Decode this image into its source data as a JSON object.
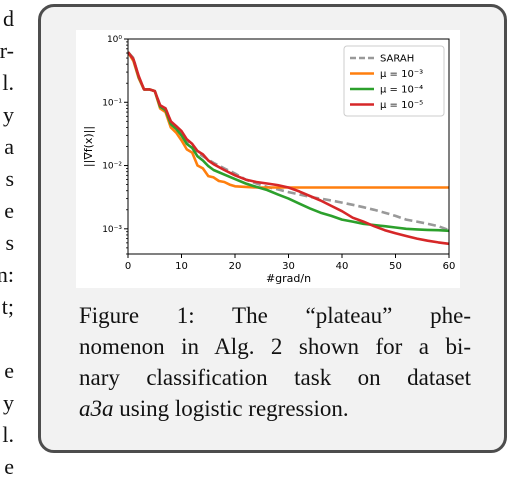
{
  "left_fragments": [
    "d",
    "r-",
    "l.",
    "y",
    "a",
    "s",
    "e",
    "s",
    "n:",
    "t;",
    "e",
    "y",
    "l.",
    "e"
  ],
  "caption": {
    "label": "Figure 1:",
    "line1_rest": "The “plateau” phe-",
    "line2": "nomenon in Alg. 2 shown for a bi-",
    "line3": "nary classification task on dataset",
    "line4_italic": "a3a",
    "line4_rest": "using logistic regression."
  },
  "chart_data": {
    "type": "line",
    "xlabel": "#grad/n",
    "ylabel": "||∇f(x)||",
    "xlim": [
      0,
      60
    ],
    "ylim": [
      0.0004,
      1
    ],
    "yscale": "log",
    "xticks": [
      "0",
      "10",
      "20",
      "30",
      "40",
      "50",
      "60"
    ],
    "yticks": [
      "10⁰",
      "10⁻¹",
      "10⁻²",
      "10⁻³"
    ],
    "legend_position": "top-right",
    "series": [
      {
        "name": "SARAH",
        "color": "#999999",
        "style": "dashed",
        "x": [
          0,
          1,
          2,
          3,
          4,
          5,
          6,
          7,
          8,
          9,
          10,
          11,
          12,
          13,
          14,
          16,
          18,
          20,
          22,
          24,
          26,
          28,
          30,
          32,
          34,
          36,
          38,
          40,
          42,
          44,
          46,
          48,
          50,
          52,
          54,
          56,
          58,
          60
        ],
        "y": [
          0.62,
          0.5,
          0.25,
          0.16,
          0.16,
          0.15,
          0.09,
          0.08,
          0.05,
          0.04,
          0.03,
          0.025,
          0.02,
          0.016,
          0.014,
          0.011,
          0.009,
          0.0075,
          0.006,
          0.0052,
          0.0046,
          0.0042,
          0.0038,
          0.0035,
          0.0032,
          0.003,
          0.0028,
          0.0026,
          0.0024,
          0.0022,
          0.002,
          0.0018,
          0.0016,
          0.0014,
          0.0013,
          0.0012,
          0.0011,
          0.00095
        ]
      },
      {
        "name": "μ = 10⁻³",
        "color": "#ff7f0e",
        "style": "solid",
        "x": [
          0,
          1,
          2,
          3,
          4,
          5,
          6,
          7,
          8,
          9,
          10,
          11,
          12,
          13,
          14,
          15,
          16,
          17,
          18,
          19,
          20,
          22,
          24,
          26,
          28,
          30,
          40,
          50,
          60
        ],
        "y": [
          0.62,
          0.45,
          0.24,
          0.16,
          0.16,
          0.15,
          0.08,
          0.07,
          0.04,
          0.033,
          0.025,
          0.018,
          0.016,
          0.01,
          0.009,
          0.0068,
          0.0065,
          0.0057,
          0.0055,
          0.005,
          0.0047,
          0.0046,
          0.0045,
          0.0045,
          0.0045,
          0.0045,
          0.0045,
          0.0045,
          0.0045
        ]
      },
      {
        "name": "μ = 10⁻⁴",
        "color": "#2ca02c",
        "style": "solid",
        "x": [
          0,
          1,
          2,
          3,
          4,
          5,
          6,
          7,
          8,
          9,
          10,
          11,
          12,
          13,
          14,
          15,
          16,
          18,
          20,
          22,
          24,
          26,
          28,
          30,
          32,
          34,
          36,
          38,
          40,
          42,
          44,
          46,
          48,
          50,
          52,
          54,
          56,
          58,
          60
        ],
        "y": [
          0.62,
          0.48,
          0.25,
          0.16,
          0.16,
          0.15,
          0.085,
          0.075,
          0.045,
          0.038,
          0.03,
          0.022,
          0.019,
          0.014,
          0.012,
          0.0098,
          0.0085,
          0.0072,
          0.0061,
          0.0052,
          0.0046,
          0.0041,
          0.0035,
          0.003,
          0.0025,
          0.0021,
          0.0018,
          0.0016,
          0.0014,
          0.0013,
          0.0012,
          0.00115,
          0.0011,
          0.00105,
          0.001,
          0.00098,
          0.00096,
          0.00095,
          0.00093
        ]
      },
      {
        "name": "μ = 10⁻⁵",
        "color": "#d62728",
        "style": "solid",
        "x": [
          0,
          1,
          2,
          3,
          4,
          5,
          6,
          7,
          8,
          9,
          10,
          11,
          12,
          13,
          14,
          15,
          16,
          18,
          20,
          22,
          24,
          26,
          28,
          30,
          32,
          34,
          36,
          38,
          40,
          42,
          44,
          46,
          48,
          50,
          52,
          54,
          56,
          58,
          60
        ],
        "y": [
          0.62,
          0.48,
          0.26,
          0.16,
          0.16,
          0.15,
          0.09,
          0.08,
          0.05,
          0.042,
          0.035,
          0.026,
          0.022,
          0.017,
          0.015,
          0.012,
          0.0105,
          0.0085,
          0.007,
          0.006,
          0.0055,
          0.0052,
          0.0049,
          0.0045,
          0.0039,
          0.0033,
          0.0028,
          0.0023,
          0.0019,
          0.0015,
          0.0013,
          0.0011,
          0.00095,
          0.00085,
          0.00077,
          0.0007,
          0.00065,
          0.00061,
          0.00058
        ]
      }
    ]
  }
}
